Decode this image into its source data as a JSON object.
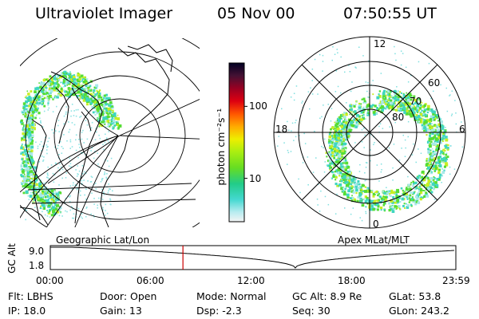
{
  "header": {
    "title": "Ultraviolet Imager",
    "date": "05 Nov 00",
    "time": "07:50:55 UT"
  },
  "colorbar": {
    "label": "photon cm⁻²s⁻¹",
    "ticks": [
      {
        "value": 100,
        "label": "100"
      },
      {
        "value": 10,
        "label": "10"
      }
    ],
    "range": [
      2.5,
      400
    ],
    "scale": "log"
  },
  "left_panel": {
    "label": "Geographic Lat/Lon"
  },
  "right_panel": {
    "label": "Apex MLat/MLT",
    "mlt_labels": {
      "top": "12",
      "bottom": "0",
      "left": "18",
      "right": "6"
    },
    "lat_labels": [
      "60",
      "70",
      "80"
    ]
  },
  "timeline": {
    "ylabel": "GC Alt",
    "y_ticks": [
      "9.0",
      "1.8"
    ],
    "x_ticks": [
      "00:00",
      "06:00",
      "12:00",
      "18:00",
      "23:59"
    ],
    "current_time_hours": 7.85
  },
  "info": {
    "row1": {
      "flt": "Flt: LBHS",
      "door": "Door: Open",
      "mode": "Mode: Normal",
      "gcalt": "GC Alt: 8.9 Re",
      "glat": "GLat:  53.8"
    },
    "row2": {
      "ip": "IP: 18.0",
      "gain": "Gain: 13",
      "dsp": "Dsp:    -2.3",
      "seq": "Seq: 30",
      "glon": "GLon: 243.2"
    }
  },
  "colors": {
    "background": "#ffffff",
    "line": "#000000",
    "time_marker": "#cc0000",
    "aurora_teal": "#3fd6c0",
    "aurora_green": "#55dd33",
    "aurora_yellow": "#c8ee22"
  }
}
